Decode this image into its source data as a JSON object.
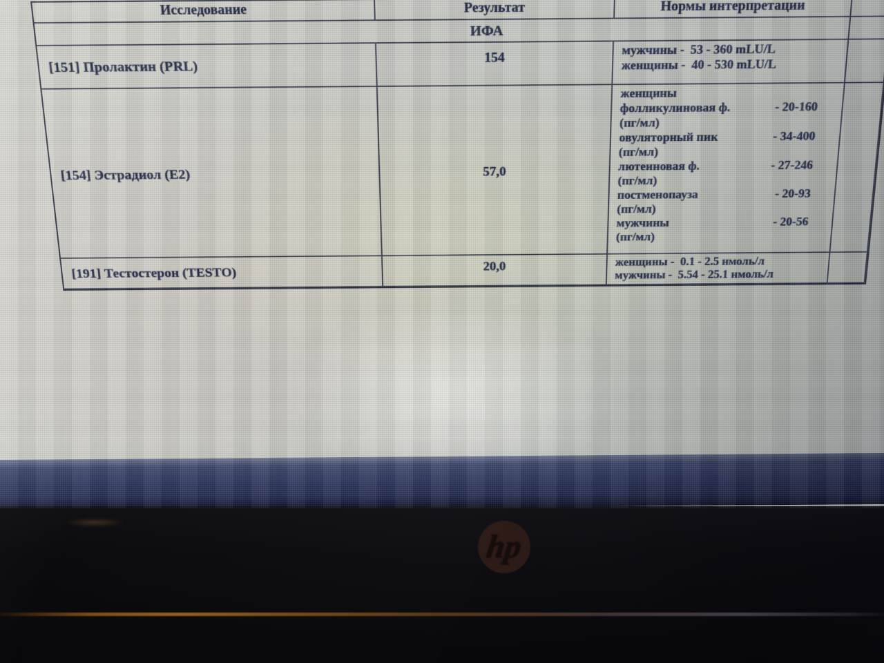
{
  "table": {
    "headers": {
      "test": "Исследование",
      "result": "Результат",
      "norms": "Нормы интерпретации"
    },
    "section_label": "ИФА",
    "rows": [
      {
        "test": "[151] Пролактин (PRL)",
        "result": "154",
        "norms": [
          {
            "label": "мужчины -",
            "value": "53 - 360 mLU/L"
          },
          {
            "label": "женщины -",
            "value": "40 - 530 mLU/L"
          }
        ]
      },
      {
        "test": "[154] Эстрадиол (Е2)",
        "result": "57,0",
        "norms": [
          {
            "label": "женщины",
            "value": ""
          },
          {
            "label": "фолликулиновая ф.",
            "value": "- 20-160",
            "unit": "(пг/мл)"
          },
          {
            "label": "овуляторный пик",
            "value": "- 34-400",
            "unit": "(пг/мл)"
          },
          {
            "label": "лютеиновая ф.",
            "value": "- 27-246",
            "unit": "(пг/мл)"
          },
          {
            "label": "постменопауза",
            "value": "- 20-93",
            "unit": "(пг/мл)"
          },
          {
            "label": "мужчины",
            "value": "- 20-56",
            "unit": "(пг/мл)"
          }
        ]
      },
      {
        "test": "[191] Тестостерон (TESTO)",
        "result": "20,0",
        "norms": [
          {
            "label": "женщины -",
            "value": "0.1 - 2.5 нмоль/л"
          },
          {
            "label": "мужчины -",
            "value": "5.54 - 25.1 нмоль/л"
          }
        ]
      }
    ]
  },
  "device": {
    "logo_text": "hp"
  }
}
